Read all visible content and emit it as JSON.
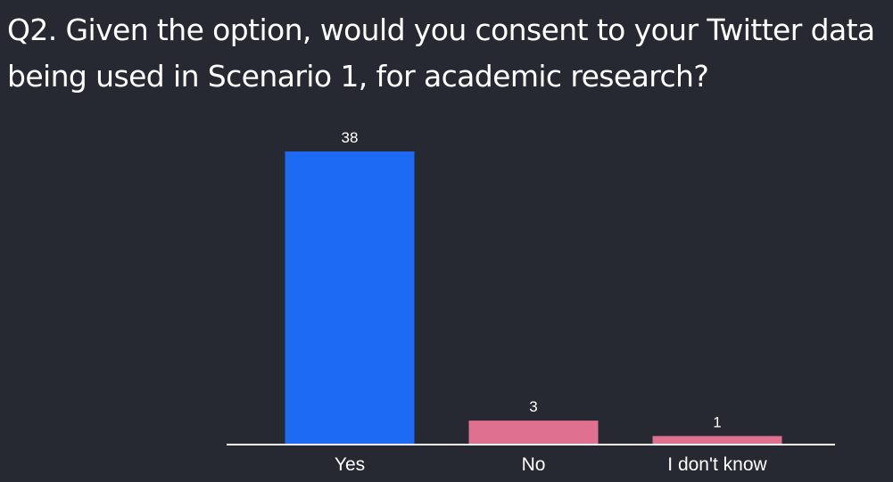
{
  "slide": {
    "title": "Q2. Given the option, would you consent to your Twitter data being used in Scenario 1, for academic research?"
  },
  "colors": {
    "background": "#262932",
    "title_text": "#ffffff",
    "axis_line": "#ffffff",
    "label_text": "#ffffff"
  },
  "chart_data": {
    "type": "bar",
    "title": "",
    "xlabel": "",
    "ylabel": "",
    "categories": [
      "Yes",
      "No",
      "I don't know"
    ],
    "values": [
      38,
      3,
      1
    ],
    "data_labels": [
      "38",
      "3",
      "1"
    ],
    "bar_colors": [
      "#1d6af5",
      "#e07090",
      "#e07090"
    ],
    "ylim": [
      0,
      38
    ],
    "grid": false,
    "legend": "none"
  }
}
